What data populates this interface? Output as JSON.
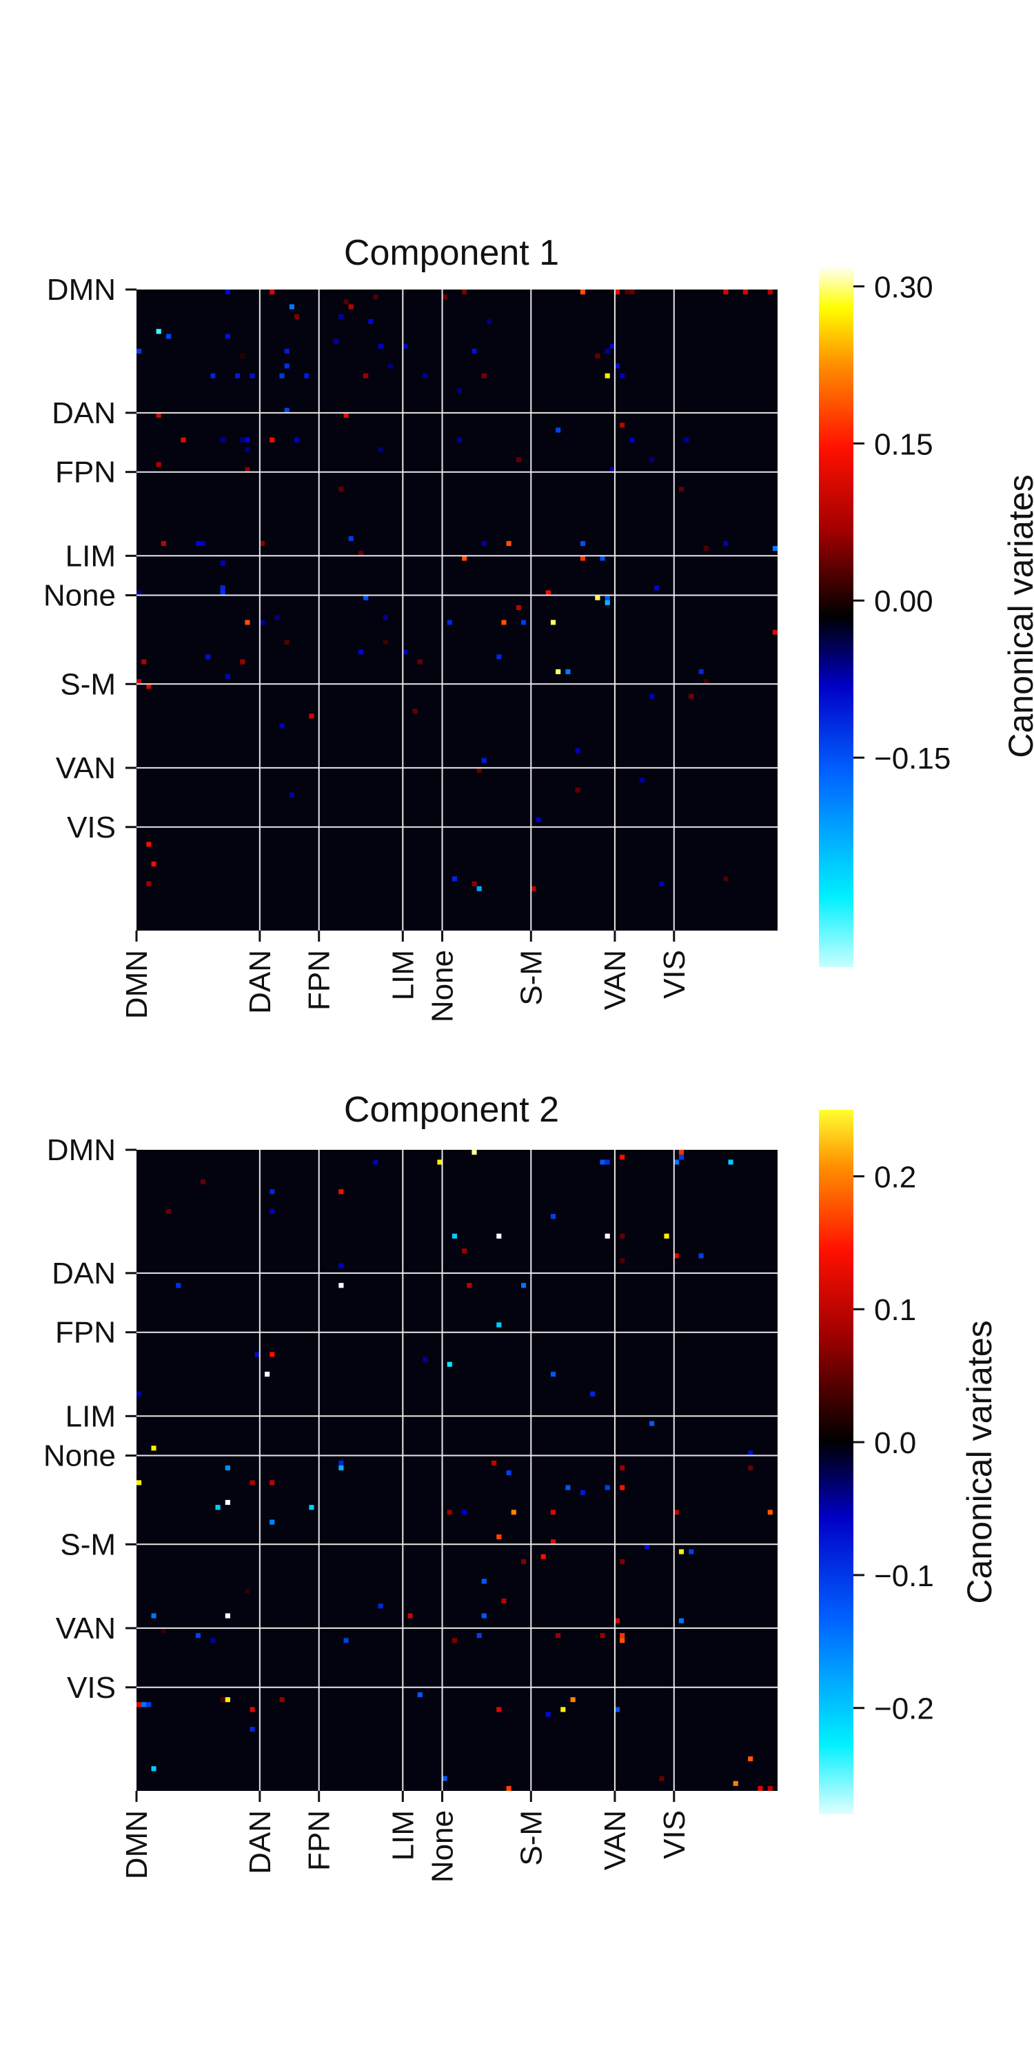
{
  "chart_data": [
    {
      "type": "heatmap",
      "title": "Component 1",
      "networks": [
        "DMN",
        "DAN",
        "FPN",
        "LIM",
        "None",
        "S-M",
        "VAN",
        "VIS"
      ],
      "network_starts": [
        0,
        25,
        37,
        54,
        62,
        80,
        97,
        109
      ],
      "matrix_size": 130,
      "colorbar": {
        "label": "Canonical variates",
        "vmin": -0.35,
        "vmax": 0.32,
        "ticks": [
          0.3,
          0.15,
          0.0,
          -0.15
        ],
        "tick_labels": [
          "0.30",
          "0.15",
          "0.00",
          "−0.15"
        ]
      },
      "background_value": 0.0,
      "cells": [
        [
          0,
          18,
          -0.07
        ],
        [
          0,
          27,
          0.12
        ],
        [
          0,
          66,
          0.06
        ],
        [
          0,
          99,
          0.04
        ],
        [
          0,
          100,
          0.05
        ],
        [
          0,
          119,
          0.12
        ],
        [
          0,
          123,
          0.12
        ],
        [
          0,
          128,
          0.1
        ],
        [
          0,
          90,
          0.2
        ],
        [
          0,
          97,
          0.14
        ],
        [
          1,
          48,
          0.04
        ],
        [
          1,
          62,
          0.05
        ],
        [
          2,
          42,
          0.04
        ],
        [
          3,
          43,
          0.1
        ],
        [
          3,
          31,
          -0.18
        ],
        [
          5,
          41,
          -0.05
        ],
        [
          5,
          32,
          0.06
        ],
        [
          6,
          71,
          -0.04
        ],
        [
          6,
          47,
          -0.07
        ],
        [
          8,
          4,
          -0.3
        ],
        [
          9,
          6,
          -0.13
        ],
        [
          9,
          18,
          -0.08
        ],
        [
          10,
          40,
          -0.05
        ],
        [
          10,
          40,
          -0.05
        ],
        [
          11,
          54,
          -0.06
        ],
        [
          11,
          49,
          -0.06
        ],
        [
          12,
          30,
          -0.09
        ],
        [
          12,
          0,
          -0.12
        ],
        [
          12,
          68,
          -0.08
        ],
        [
          12,
          95,
          -0.05
        ],
        [
          11,
          96,
          -0.07
        ],
        [
          13,
          21,
          0.02
        ],
        [
          13,
          93,
          0.05
        ],
        [
          15,
          30,
          -0.11
        ],
        [
          15,
          97,
          -0.08
        ],
        [
          15,
          51,
          -0.04
        ],
        [
          17,
          15,
          -0.1
        ],
        [
          17,
          20,
          -0.09
        ],
        [
          17,
          23,
          -0.08
        ],
        [
          17,
          29,
          -0.12
        ],
        [
          17,
          34,
          -0.09
        ],
        [
          17,
          46,
          0.08
        ],
        [
          17,
          58,
          -0.05
        ],
        [
          17,
          70,
          0.06
        ],
        [
          17,
          95,
          0.28
        ],
        [
          17,
          98,
          -0.06
        ],
        [
          20,
          65,
          -0.04
        ],
        [
          24,
          30,
          -0.13
        ],
        [
          25,
          4,
          0.12
        ],
        [
          25,
          42,
          0.14
        ],
        [
          28,
          85,
          -0.13
        ],
        [
          27,
          98,
          0.1
        ],
        [
          30,
          9,
          0.14
        ],
        [
          30,
          27,
          0.15
        ],
        [
          30,
          17,
          -0.05
        ],
        [
          30,
          21,
          -0.04
        ],
        [
          30,
          22,
          -0.07
        ],
        [
          30,
          32,
          -0.06
        ],
        [
          30,
          65,
          -0.05
        ],
        [
          30,
          100,
          -0.06
        ],
        [
          30,
          111,
          -0.05
        ],
        [
          32,
          22,
          -0.04
        ],
        [
          32,
          49,
          -0.04
        ],
        [
          34,
          77,
          0.05
        ],
        [
          34,
          104,
          -0.04
        ],
        [
          35,
          4,
          0.09
        ],
        [
          36,
          22,
          0.07
        ],
        [
          36,
          96,
          -0.05
        ],
        [
          40,
          41,
          0.05
        ],
        [
          40,
          110,
          0.05
        ],
        [
          50,
          43,
          -0.12
        ],
        [
          51,
          5,
          0.1
        ],
        [
          51,
          12,
          -0.07
        ],
        [
          51,
          13,
          -0.06
        ],
        [
          51,
          25,
          0.07
        ],
        [
          51,
          119,
          -0.06
        ],
        [
          51,
          70,
          -0.05
        ],
        [
          51,
          75,
          0.2
        ],
        [
          51,
          90,
          -0.14
        ],
        [
          52,
          129,
          -0.18
        ],
        [
          55,
          17,
          -0.06
        ],
        [
          54,
          90,
          0.18
        ],
        [
          54,
          94,
          -0.14
        ],
        [
          54,
          66,
          0.2
        ],
        [
          53,
          45,
          0.05
        ],
        [
          52,
          115,
          0.04
        ],
        [
          60,
          105,
          -0.07
        ],
        [
          60,
          17,
          -0.1
        ],
        [
          61,
          17,
          -0.11
        ],
        [
          60,
          17,
          -0.1
        ],
        [
          61,
          0,
          -0.04
        ],
        [
          61,
          83,
          0.15
        ],
        [
          62,
          46,
          -0.14
        ],
        [
          62,
          93,
          0.3
        ],
        [
          62,
          95,
          -0.15
        ],
        [
          63,
          95,
          -0.23
        ],
        [
          64,
          77,
          0.1
        ],
        [
          67,
          22,
          0.2
        ],
        [
          67,
          25,
          -0.05
        ],
        [
          66,
          28,
          -0.04
        ],
        [
          66,
          50,
          -0.05
        ],
        [
          67,
          63,
          -0.1
        ],
        [
          67,
          78,
          -0.12
        ],
        [
          67,
          74,
          0.2
        ],
        [
          67,
          84,
          0.3
        ],
        [
          69,
          129,
          0.13
        ],
        [
          71,
          30,
          0.04
        ],
        [
          71,
          50,
          0.03
        ],
        [
          73,
          54,
          -0.06
        ],
        [
          73,
          45,
          -0.07
        ],
        [
          74,
          14,
          -0.08
        ],
        [
          74,
          73,
          -0.1
        ],
        [
          75,
          21,
          0.08
        ],
        [
          75,
          57,
          0.05
        ],
        [
          75,
          1,
          0.09
        ],
        [
          77,
          85,
          0.3
        ],
        [
          77,
          87,
          -0.18
        ],
        [
          77,
          114,
          -0.1
        ],
        [
          79,
          0,
          0.1
        ],
        [
          80,
          2,
          0.12
        ],
        [
          79,
          115,
          0.03
        ],
        [
          78,
          18,
          -0.06
        ],
        [
          82,
          112,
          0.06
        ],
        [
          82,
          104,
          -0.06
        ],
        [
          85,
          56,
          0.05
        ],
        [
          86,
          35,
          0.12
        ],
        [
          88,
          29,
          -0.06
        ],
        [
          93,
          89,
          -0.06
        ],
        [
          95,
          70,
          -0.09
        ],
        [
          97,
          69,
          0.05
        ],
        [
          99,
          102,
          -0.05
        ],
        [
          101,
          89,
          0.05
        ],
        [
          102,
          31,
          -0.05
        ],
        [
          107,
          81,
          -0.06
        ],
        [
          112,
          2,
          0.15
        ],
        [
          116,
          3,
          0.15
        ],
        [
          119,
          64,
          -0.1
        ],
        [
          120,
          2,
          0.08
        ],
        [
          120,
          68,
          0.07
        ],
        [
          120,
          106,
          -0.06
        ],
        [
          121,
          80,
          0.1
        ],
        [
          121,
          69,
          -0.22
        ],
        [
          119,
          119,
          0.04
        ]
      ]
    },
    {
      "type": "heatmap",
      "title": "Component 2",
      "networks": [
        "DMN",
        "DAN",
        "FPN",
        "LIM",
        "None",
        "S-M",
        "VAN",
        "VIS"
      ],
      "network_starts": [
        0,
        25,
        37,
        54,
        62,
        80,
        97,
        109
      ],
      "matrix_size": 130,
      "colorbar": {
        "label": "Canonical variates",
        "vmin": -0.28,
        "vmax": 0.25,
        "ticks": [
          0.2,
          0.1,
          0.0,
          -0.1,
          -0.2
        ],
        "tick_labels": [
          "0.2",
          "0.1",
          "0.0",
          "−0.1",
          "−0.2"
        ]
      },
      "background_value": 0.0,
      "cells": [
        [
          0,
          68,
          0.24
        ],
        [
          0,
          110,
          0.14
        ],
        [
          1,
          110,
          -0.1
        ],
        [
          1,
          98,
          0.12
        ],
        [
          2,
          61,
          0.22
        ],
        [
          2,
          94,
          -0.12
        ],
        [
          2,
          95,
          -0.09
        ],
        [
          2,
          109,
          -0.14
        ],
        [
          2,
          120,
          -0.2
        ],
        [
          2,
          48,
          -0.05
        ],
        [
          6,
          13,
          0.04
        ],
        [
          8,
          27,
          -0.08
        ],
        [
          8,
          41,
          0.12
        ],
        [
          12,
          6,
          0.04
        ],
        [
          12,
          27,
          -0.05
        ],
        [
          13,
          84,
          -0.1
        ],
        [
          17,
          64,
          -0.2
        ],
        [
          17,
          73,
          0.28
        ],
        [
          17,
          95,
          0.28
        ],
        [
          17,
          107,
          0.22
        ],
        [
          17,
          98,
          0.04
        ],
        [
          20,
          66,
          0.06
        ],
        [
          21,
          109,
          0.1
        ],
        [
          21,
          114,
          -0.1
        ],
        [
          22,
          98,
          0.03
        ],
        [
          23,
          41,
          -0.05
        ],
        [
          27,
          8,
          -0.09
        ],
        [
          27,
          41,
          0.28
        ],
        [
          27,
          67,
          0.08
        ],
        [
          27,
          78,
          -0.14
        ],
        [
          35,
          73,
          -0.2
        ],
        [
          41,
          27,
          0.12
        ],
        [
          41,
          24,
          -0.06
        ],
        [
          42,
          58,
          -0.04
        ],
        [
          43,
          63,
          -0.22
        ],
        [
          45,
          26,
          0.28
        ],
        [
          45,
          84,
          -0.12
        ],
        [
          49,
          0,
          -0.04
        ],
        [
          49,
          92,
          -0.08
        ],
        [
          55,
          104,
          -0.12
        ],
        [
          60,
          3,
          0.22
        ],
        [
          61,
          124,
          -0.06
        ],
        [
          63,
          41,
          -0.08
        ],
        [
          63,
          72,
          0.08
        ],
        [
          64,
          18,
          -0.16
        ],
        [
          64,
          41,
          -0.18
        ],
        [
          64,
          98,
          0.06
        ],
        [
          64,
          124,
          0.04
        ],
        [
          65,
          75,
          -0.1
        ],
        [
          67,
          0,
          0.22
        ],
        [
          67,
          23,
          0.07
        ],
        [
          67,
          27,
          0.08
        ],
        [
          68,
          87,
          -0.12
        ],
        [
          68,
          95,
          -0.1
        ],
        [
          68,
          98,
          0.12
        ],
        [
          69,
          90,
          -0.07
        ],
        [
          71,
          18,
          0.28
        ],
        [
          72,
          35,
          -0.2
        ],
        [
          72,
          16,
          -0.2
        ],
        [
          73,
          63,
          0.06
        ],
        [
          73,
          66,
          -0.05
        ],
        [
          73,
          76,
          0.18
        ],
        [
          73,
          84,
          0.1
        ],
        [
          73,
          109,
          0.08
        ],
        [
          73,
          128,
          0.16
        ],
        [
          75,
          27,
          -0.15
        ],
        [
          78,
          73,
          0.15
        ],
        [
          79,
          84,
          0.1
        ],
        [
          80,
          103,
          -0.06
        ],
        [
          81,
          110,
          0.22
        ],
        [
          81,
          112,
          -0.1
        ],
        [
          82,
          82,
          0.12
        ],
        [
          83,
          78,
          0.05
        ],
        [
          83,
          98,
          0.05
        ],
        [
          87,
          70,
          -0.12
        ],
        [
          89,
          22,
          0.02
        ],
        [
          91,
          74,
          0.08
        ],
        [
          92,
          49,
          -0.08
        ],
        [
          94,
          70,
          -0.12
        ],
        [
          94,
          3,
          -0.14
        ],
        [
          94,
          18,
          0.28
        ],
        [
          94,
          55,
          0.09
        ],
        [
          95,
          97,
          0.1
        ],
        [
          95,
          110,
          -0.14
        ],
        [
          97,
          5,
          0.02
        ],
        [
          98,
          12,
          -0.1
        ],
        [
          98,
          69,
          -0.1
        ],
        [
          98,
          85,
          0.06
        ],
        [
          98,
          94,
          0.06
        ],
        [
          98,
          98,
          0.14
        ],
        [
          99,
          98,
          0.16
        ],
        [
          99,
          15,
          -0.04
        ],
        [
          99,
          42,
          -0.1
        ],
        [
          99,
          64,
          0.05
        ],
        [
          110,
          57,
          -0.12
        ],
        [
          111,
          17,
          0.03
        ],
        [
          111,
          18,
          0.22
        ],
        [
          111,
          88,
          0.18
        ],
        [
          111,
          29,
          0.06
        ],
        [
          112,
          0,
          0.1
        ],
        [
          112,
          1,
          -0.14
        ],
        [
          112,
          2,
          -0.1
        ],
        [
          113,
          23,
          0.1
        ],
        [
          113,
          73,
          0.1
        ],
        [
          113,
          97,
          -0.12
        ],
        [
          113,
          86,
          0.22
        ],
        [
          114,
          83,
          -0.06
        ],
        [
          117,
          23,
          -0.08
        ],
        [
          123,
          124,
          0.16
        ],
        [
          125,
          3,
          -0.2
        ],
        [
          127,
          62,
          -0.12
        ],
        [
          127,
          106,
          0.04
        ],
        [
          128,
          121,
          0.18
        ],
        [
          129,
          75,
          0.15
        ],
        [
          129,
          126,
          0.1
        ],
        [
          129,
          128,
          0.08
        ]
      ]
    }
  ]
}
